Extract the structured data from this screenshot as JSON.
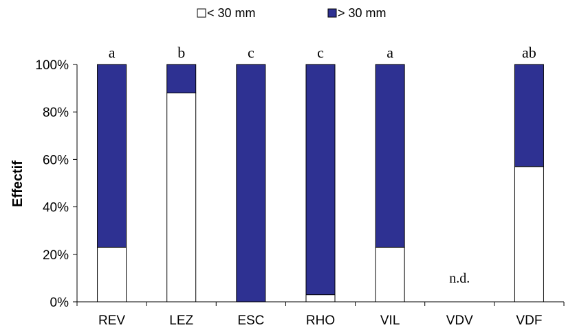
{
  "chart_data": {
    "type": "bar",
    "stacked": true,
    "normalized": true,
    "categories": [
      "REV",
      "LEZ",
      "ESC",
      "RHO",
      "VIL",
      "VDV",
      "VDF"
    ],
    "series": [
      {
        "name": "< 30 mm",
        "color": "#ffffff",
        "values": [
          23,
          88,
          0,
          3,
          23,
          null,
          57
        ]
      },
      {
        "name": "> 30 mm",
        "color": "#2e3192",
        "values": [
          77,
          12,
          100,
          97,
          77,
          null,
          43
        ]
      }
    ],
    "group_labels": [
      "a",
      "b",
      "c",
      "c",
      "a",
      "",
      "ab"
    ],
    "annotations": [
      {
        "category": "VDV",
        "text": "n.d."
      }
    ],
    "ylabel": "Effectif",
    "xlabel": "",
    "ylim": [
      0,
      100
    ],
    "yticks": [
      "0%",
      "20%",
      "40%",
      "60%",
      "80%",
      "100%"
    ],
    "legend_position": "top-center",
    "grid": false
  }
}
